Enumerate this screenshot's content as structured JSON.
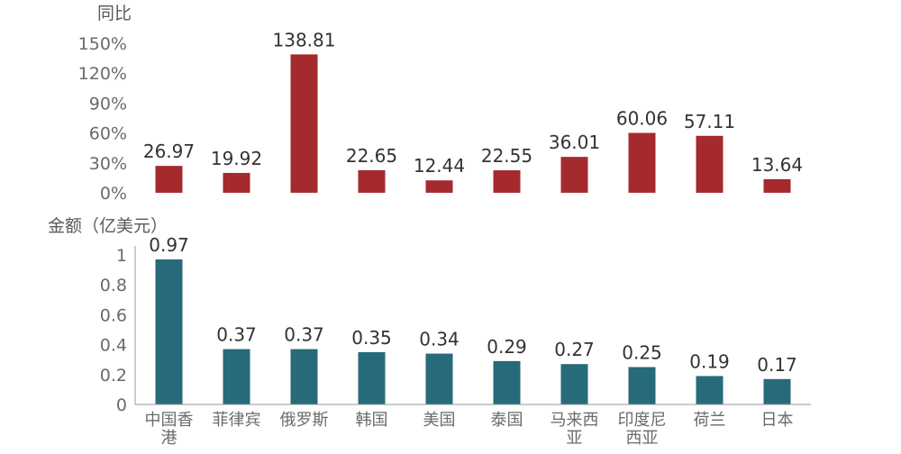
{
  "chart_data": [
    {
      "type": "bar",
      "title": "",
      "ylabel": "同比",
      "xlabel": "",
      "categories": [
        "中国香港",
        "菲律宾",
        "俄罗斯",
        "韩国",
        "美国",
        "泰国",
        "马来西亚",
        "印度尼西亚",
        "荷兰",
        "日本"
      ],
      "values": [
        26.97,
        19.92,
        138.81,
        22.65,
        12.44,
        22.55,
        36.01,
        60.06,
        57.11,
        13.64
      ],
      "data_labels": [
        "26.97",
        "19.92",
        "138.81",
        "22.65",
        "12.44",
        "22.55",
        "36.01",
        "60.06",
        "57.11",
        "13.64"
      ],
      "yticks": [
        "0%",
        "30%",
        "60%",
        "90%",
        "120%",
        "150%"
      ],
      "ylim": [
        0,
        150
      ],
      "grid": false,
      "color": "#a52a2e"
    },
    {
      "type": "bar",
      "title": "",
      "ylabel": "金额（亿美元）",
      "xlabel": "",
      "categories": [
        "中国香港",
        "菲律宾",
        "俄罗斯",
        "韩国",
        "美国",
        "泰国",
        "马来西亚",
        "印度尼西亚",
        "荷兰",
        "日本"
      ],
      "category_lines": [
        [
          "中国香",
          "港"
        ],
        [
          "菲律宾"
        ],
        [
          "俄罗斯"
        ],
        [
          "韩国"
        ],
        [
          "美国"
        ],
        [
          "泰国"
        ],
        [
          "马来西",
          "亚"
        ],
        [
          "印度尼",
          "西亚"
        ],
        [
          "荷兰"
        ],
        [
          "日本"
        ]
      ],
      "values": [
        0.97,
        0.37,
        0.37,
        0.35,
        0.34,
        0.29,
        0.27,
        0.25,
        0.19,
        0.17
      ],
      "data_labels": [
        "0.97",
        "0.37",
        "0.37",
        "0.35",
        "0.34",
        "0.29",
        "0.27",
        "0.25",
        "0.19",
        "0.17"
      ],
      "yticks": [
        "0",
        "0.2",
        "0.4",
        "0.6",
        "0.8",
        "1"
      ],
      "ylim": [
        0,
        1
      ],
      "grid": false,
      "color": "#276a7a"
    }
  ]
}
